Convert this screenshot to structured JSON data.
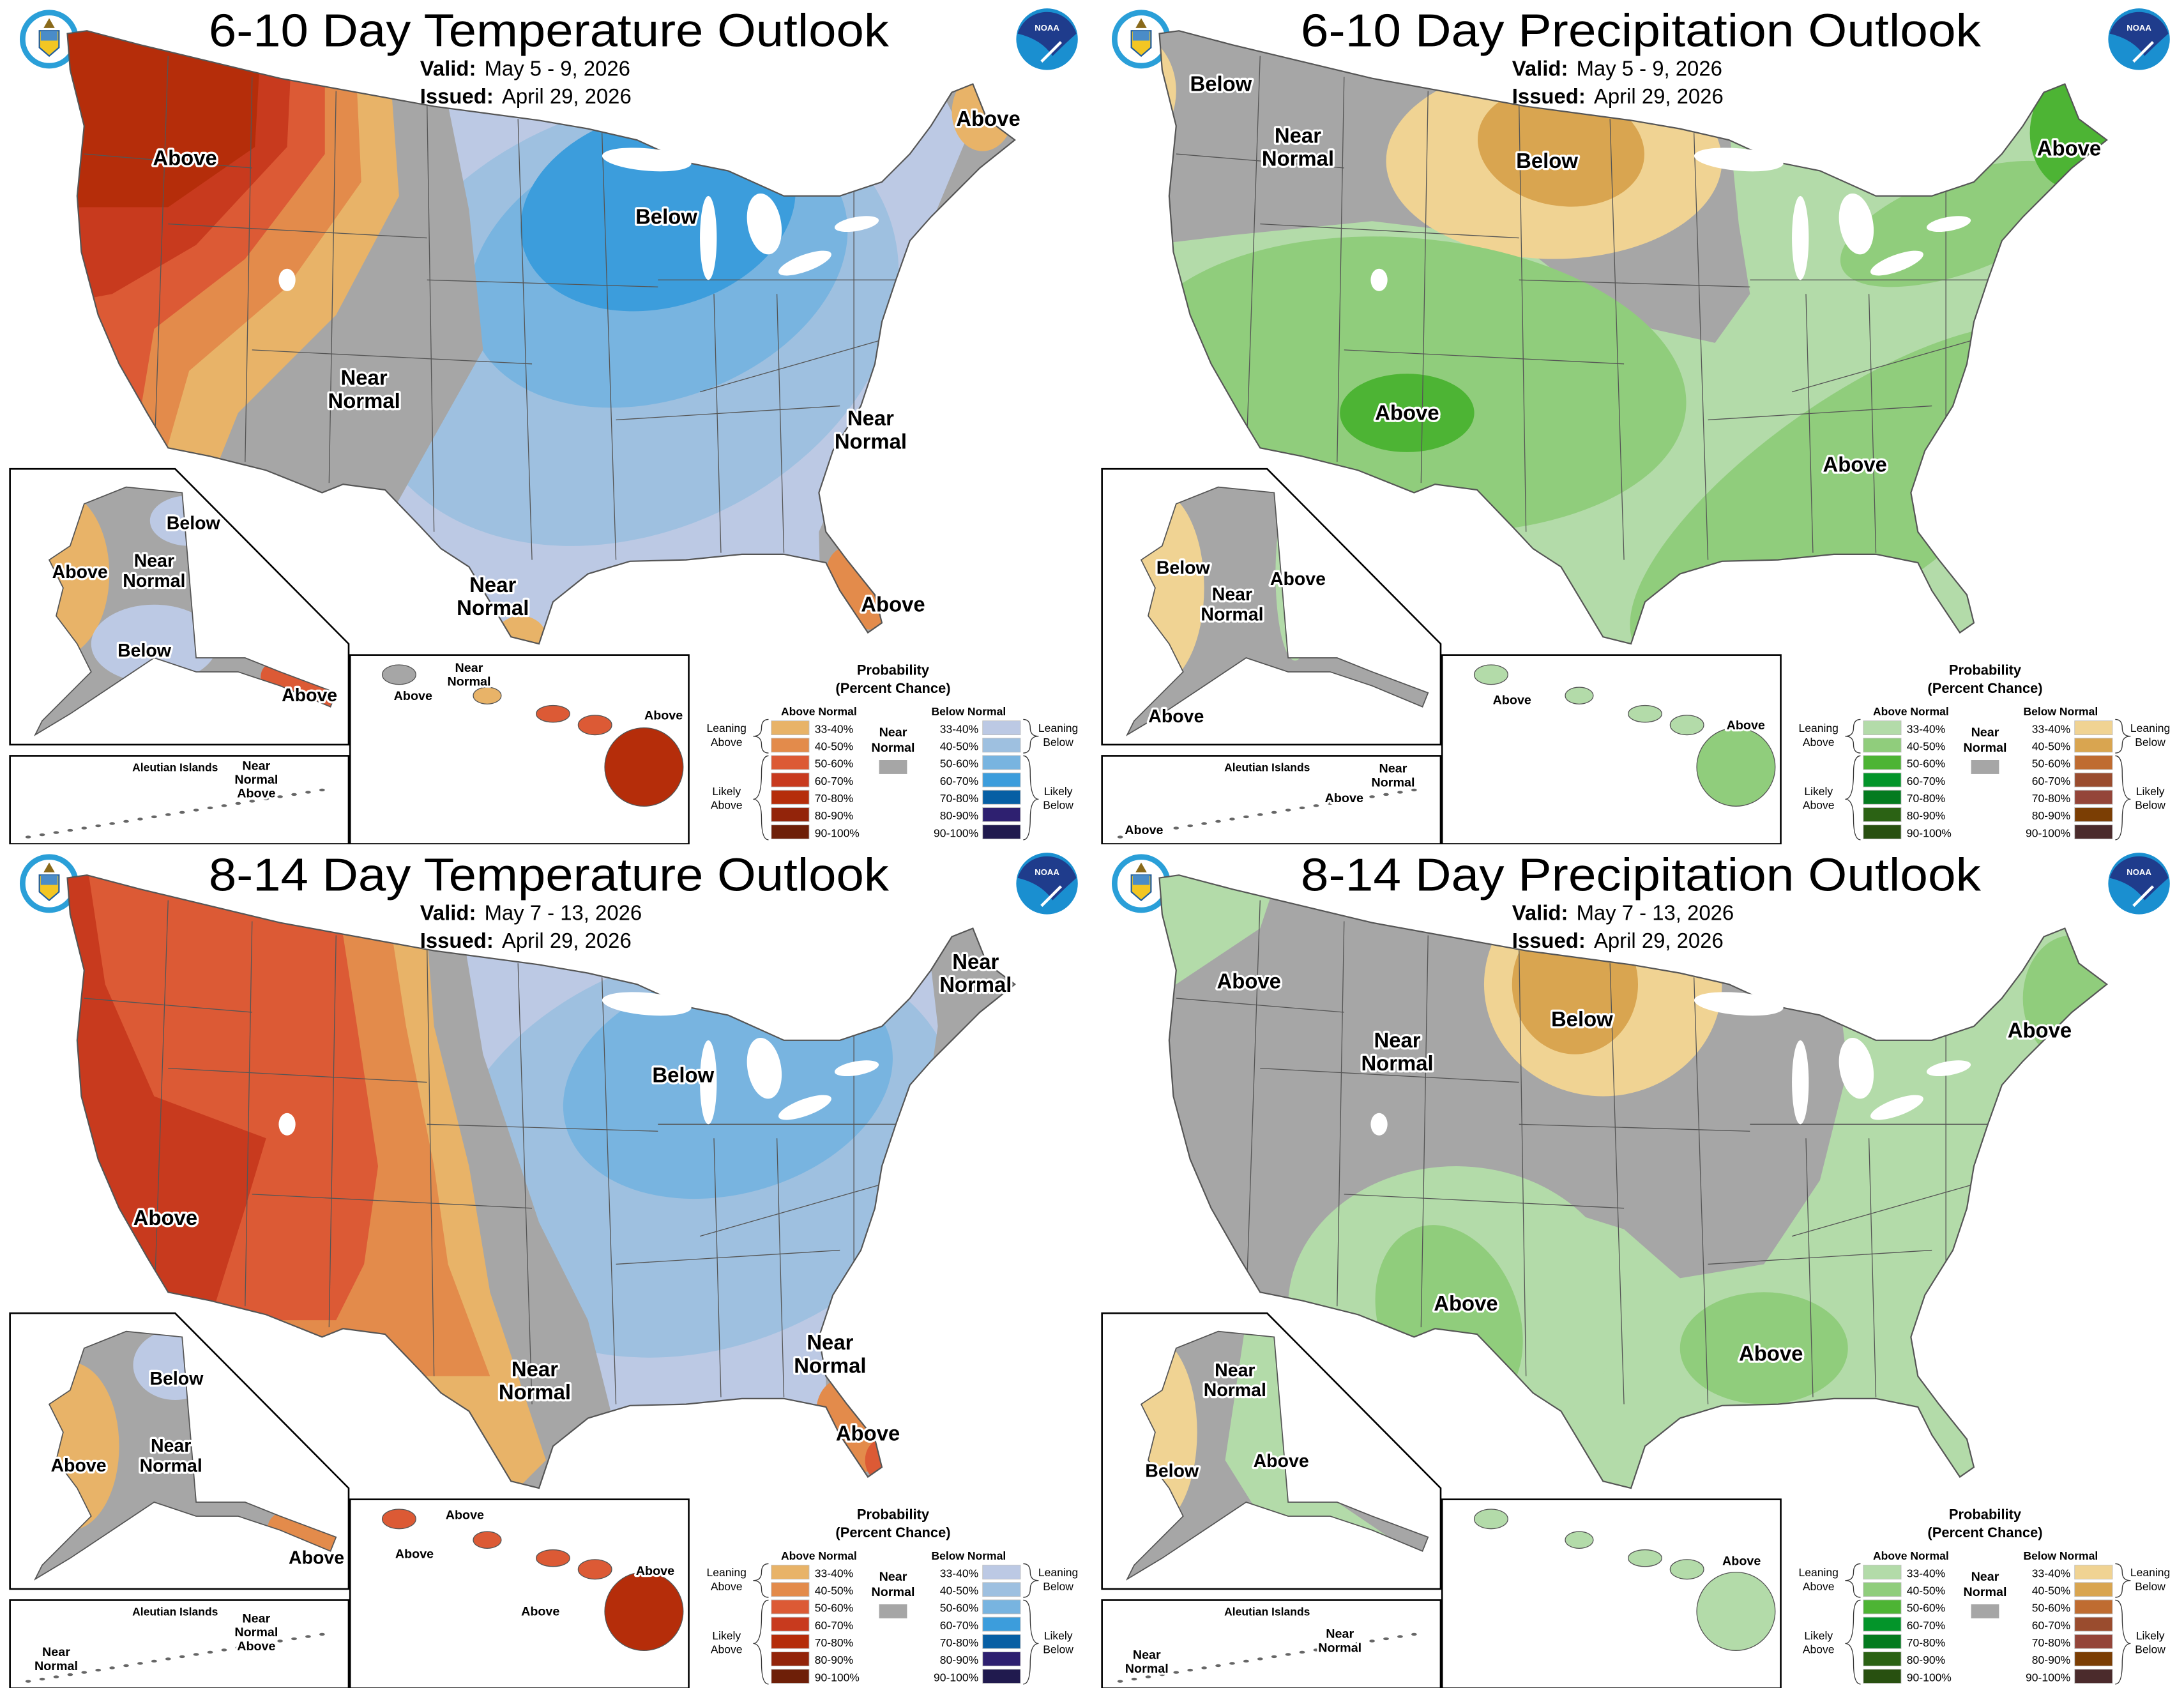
{
  "panels": [
    {
      "title": "6-10 Day Temperature Outlook",
      "valid_label": "Valid:",
      "valid": "May 5 - 9, 2026",
      "issued_label": "Issued:",
      "issued": "April 29, 2026",
      "scale": "temperature",
      "regions": [
        {
          "outlook": "Below",
          "level": "33-40%"
        },
        {
          "outlook": "Below",
          "level": "40-50%"
        },
        {
          "outlook": "Below",
          "level": "50-60%"
        },
        {
          "outlook": "Below",
          "level": "60-70%"
        },
        {
          "outlook": "Near",
          "level": ""
        },
        {
          "outlook": "Near",
          "level": ""
        },
        {
          "outlook": "Above",
          "level": "33-40%"
        },
        {
          "outlook": "Above",
          "level": "40-50%"
        },
        {
          "outlook": "Above",
          "level": "50-60%"
        },
        {
          "outlook": "Above",
          "level": "60-70%"
        },
        {
          "outlook": "Above",
          "level": "70-80%"
        },
        {
          "outlook": "Above",
          "level": "40-50%"
        },
        {
          "outlook": "Above",
          "level": "33-40%"
        },
        {
          "outlook": "Above",
          "level": "33-40%"
        }
      ],
      "map_labels": [
        [
          "Above"
        ],
        [
          "Below"
        ],
        [
          "Near",
          "Normal"
        ],
        [
          "Near",
          "Normal"
        ],
        [
          "Near",
          "Normal"
        ],
        [
          "Above"
        ],
        [
          "Above"
        ]
      ],
      "alaska_regions": [
        {
          "outlook": "Near",
          "level": ""
        },
        {
          "outlook": "Above",
          "level": "33-40%"
        },
        {
          "outlook": "Below",
          "level": "33-40%"
        },
        {
          "outlook": "Below",
          "level": "33-40%"
        },
        {
          "outlook": "Above",
          "level": "50-60%"
        }
      ],
      "alaska_labels": [
        [
          "Below"
        ],
        [
          "Above"
        ],
        [
          "Near",
          "Normal"
        ],
        [
          "Below"
        ],
        [
          "Above"
        ]
      ],
      "aleutian_labels": [
        [
          "Near",
          "Normal",
          "Above"
        ]
      ],
      "hawaii_regions": [
        {
          "outlook": "Near",
          "level": ""
        },
        {
          "outlook": "Above",
          "level": "33-40%"
        },
        {
          "outlook": "Above",
          "level": "50-60%"
        },
        {
          "outlook": "Above",
          "level": "50-60%"
        },
        {
          "outlook": "Above",
          "level": "70-80%"
        }
      ],
      "hawaii_labels": [
        [
          "Near",
          "Normal"
        ],
        [
          "Above"
        ],
        [
          "Above"
        ]
      ]
    },
    {
      "title": "6-10 Day Precipitation Outlook",
      "valid_label": "Valid:",
      "valid": "May 5 - 9, 2026",
      "issued_label": "Issued:",
      "issued": "April 29, 2026",
      "scale": "precipitation",
      "regions": [
        {
          "outlook": "Above",
          "level": "33-40%"
        },
        {
          "outlook": "Near",
          "level": ""
        },
        {
          "outlook": "Below",
          "level": "33-40%"
        },
        {
          "outlook": "Below",
          "level": "40-50%"
        },
        {
          "outlook": "Below",
          "level": "33-40%"
        },
        {
          "outlook": "Above",
          "level": "40-50%"
        },
        {
          "outlook": "Above",
          "level": "50-60%"
        },
        {
          "outlook": "Above",
          "level": "40-50%"
        },
        {
          "outlook": "Above",
          "level": "40-50%"
        },
        {
          "outlook": "Above",
          "level": "50-60%"
        }
      ],
      "map_labels": [
        [
          "Below"
        ],
        [
          "Near",
          "Normal"
        ],
        [
          "Below"
        ],
        [
          "Above"
        ],
        [
          "Above"
        ],
        [
          "Above"
        ]
      ],
      "alaska_regions": [
        {
          "outlook": "Near",
          "level": ""
        },
        {
          "outlook": "Below",
          "level": "33-40%"
        },
        {
          "outlook": "Above",
          "level": "33-40%"
        }
      ],
      "alaska_labels": [
        [
          "Below"
        ],
        [
          "Near",
          "Normal"
        ],
        [
          "Above"
        ],
        [
          "Above"
        ]
      ],
      "aleutian_labels": [
        [
          "Near",
          "Normal"
        ],
        [
          "Above"
        ],
        [
          "Above"
        ]
      ],
      "hawaii_regions": [
        {
          "outlook": "Above",
          "level": "33-40%"
        },
        {
          "outlook": "Above",
          "level": "33-40%"
        },
        {
          "outlook": "Above",
          "level": "33-40%"
        },
        {
          "outlook": "Above",
          "level": "33-40%"
        },
        {
          "outlook": "Above",
          "level": "40-50%"
        }
      ],
      "hawaii_labels": [
        [
          "Above"
        ],
        [
          "Above"
        ]
      ]
    },
    {
      "title": "8-14 Day Temperature Outlook",
      "valid_label": "Valid:",
      "valid": "May 7 - 13, 2026",
      "issued_label": "Issued:",
      "issued": "April 29, 2026",
      "scale": "temperature",
      "regions": [
        {
          "outlook": "Below",
          "level": "33-40%"
        },
        {
          "outlook": "Below",
          "level": "40-50%"
        },
        {
          "outlook": "Below",
          "level": "50-60%"
        },
        {
          "outlook": "Near",
          "level": ""
        },
        {
          "outlook": "Near",
          "level": ""
        },
        {
          "outlook": "Above",
          "level": "33-40%"
        },
        {
          "outlook": "Above",
          "level": "40-50%"
        },
        {
          "outlook": "Above",
          "level": "50-60%"
        },
        {
          "outlook": "Above",
          "level": "60-70%"
        },
        {
          "outlook": "Above",
          "level": "40-50%"
        },
        {
          "outlook": "Above",
          "level": "50-60%"
        }
      ],
      "map_labels": [
        [
          "Near",
          "Normal"
        ],
        [
          "Below"
        ],
        [
          "Above"
        ],
        [
          "Near",
          "Normal"
        ],
        [
          "Near",
          "Normal"
        ],
        [
          "Above"
        ]
      ],
      "alaska_regions": [
        {
          "outlook": "Near",
          "level": ""
        },
        {
          "outlook": "Below",
          "level": "33-40%"
        },
        {
          "outlook": "Above",
          "level": "33-40%"
        },
        {
          "outlook": "Above",
          "level": "40-50%"
        }
      ],
      "alaska_labels": [
        [
          "Below"
        ],
        [
          "Near",
          "Normal"
        ],
        [
          "Above"
        ],
        [
          "Above"
        ]
      ],
      "aleutian_labels": [
        [
          "Near",
          "Normal"
        ],
        [
          "Near",
          "Normal",
          "Above"
        ]
      ],
      "hawaii_regions": [
        {
          "outlook": "Above",
          "level": "50-60%"
        },
        {
          "outlook": "Above",
          "level": "50-60%"
        },
        {
          "outlook": "Above",
          "level": "50-60%"
        },
        {
          "outlook": "Above",
          "level": "50-60%"
        },
        {
          "outlook": "Above",
          "level": "70-80%"
        }
      ],
      "hawaii_labels": [
        [
          "Above"
        ],
        [
          "Above"
        ],
        [
          "Above"
        ],
        [
          "Above"
        ]
      ]
    },
    {
      "title": "8-14 Day Precipitation Outlook",
      "valid_label": "Valid:",
      "valid": "May 7 - 13, 2026",
      "issued_label": "Issued:",
      "issued": "April 29, 2026",
      "scale": "precipitation",
      "regions": [
        {
          "outlook": "Above",
          "level": "33-40%"
        },
        {
          "outlook": "Near",
          "level": ""
        },
        {
          "outlook": "Above",
          "level": "33-40%"
        },
        {
          "outlook": "Above",
          "level": "40-50%"
        },
        {
          "outlook": "Above",
          "level": "40-50%"
        },
        {
          "outlook": "Below",
          "level": "33-40%"
        },
        {
          "outlook": "Below",
          "level": "40-50%"
        },
        {
          "outlook": "Above",
          "level": "40-50%"
        }
      ],
      "map_labels": [
        [
          "Above"
        ],
        [
          "Near",
          "Normal"
        ],
        [
          "Below"
        ],
        [
          "Above"
        ],
        [
          "Above"
        ],
        [
          "Above"
        ]
      ],
      "alaska_regions": [
        {
          "outlook": "Near",
          "level": ""
        },
        {
          "outlook": "Below",
          "level": "33-40%"
        },
        {
          "outlook": "Above",
          "level": "33-40%"
        }
      ],
      "alaska_labels": [
        [
          "Near",
          "Normal"
        ],
        [
          "Below"
        ],
        [
          "Above"
        ]
      ],
      "aleutian_labels": [
        [
          "Near",
          "Normal"
        ],
        [
          "Near",
          "Normal"
        ]
      ],
      "hawaii_regions": [
        {
          "outlook": "Above",
          "level": "33-40%"
        },
        {
          "outlook": "Above",
          "level": "33-40%"
        },
        {
          "outlook": "Above",
          "level": "33-40%"
        },
        {
          "outlook": "Above",
          "level": "33-40%"
        },
        {
          "outlook": "Above",
          "level": "33-40%"
        }
      ],
      "hawaii_labels": [
        [
          "Above"
        ]
      ]
    }
  ],
  "aleutian_title": "Aleutian Islands",
  "noaa_logo_text": "NOAA",
  "legend": {
    "title": [
      "Probability",
      "(Percent Chance)"
    ],
    "above_header": "Above Normal",
    "below_header": "Below Normal",
    "levels": [
      "33-40%",
      "40-50%",
      "50-60%",
      "60-70%",
      "70-80%",
      "80-90%",
      "90-100%"
    ],
    "near_normal": [
      "Near",
      "Normal"
    ],
    "leaning_above": [
      "Leaning",
      "Above"
    ],
    "likely_above": [
      "Likely",
      "Above"
    ],
    "leaning_below": [
      "Leaning",
      "Below"
    ],
    "likely_below": [
      "Likely",
      "Below"
    ]
  },
  "color_scales": {
    "near_normal": "#a6a6a6",
    "temperature": {
      "Above": [
        "#e8b368",
        "#e38b4b",
        "#dc5a35",
        "#c83a1e",
        "#b52d0a",
        "#93240a",
        "#6e1f08"
      ],
      "Below": [
        "#bcc9e4",
        "#9ec0e0",
        "#78b4e0",
        "#3c9ddc",
        "#075fa4",
        "#2e2070",
        "#201a4e"
      ]
    },
    "precipitation": {
      "Above": [
        "#b3dba9",
        "#90cd7c",
        "#4db434",
        "#03952a",
        "#047b1f",
        "#2b6214",
        "#285010"
      ],
      "Below": [
        "#f0d393",
        "#d9a550",
        "#bf6c31",
        "#9a4c2e",
        "#944539",
        "#7b3e04",
        "#4b2b2c"
      ]
    }
  }
}
